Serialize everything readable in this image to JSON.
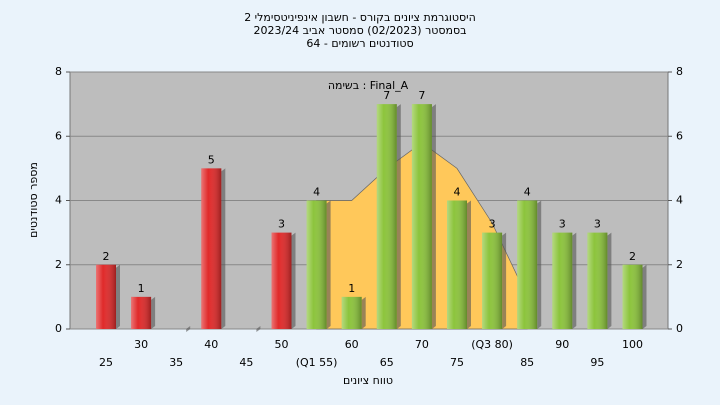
{
  "chart_data": {
    "type": "bar",
    "title": [
      "היסטוגרמת ציונים בקורס - חשבון אינפיניטסימלי 2",
      "בסמסטר  (02/2023)  סמסטר אביב 2023/24",
      "סטודנטים רשומים - 64"
    ],
    "annotation": "בשימה : Final_A",
    "x_label": "טווח ציונים",
    "y_label": "מספר סטודנטים",
    "categories": [
      "25",
      "30",
      "35",
      "40",
      "45",
      "50",
      "(Q1 55)",
      "60",
      "65",
      "70",
      "75",
      "(Q3 80)",
      "85",
      "90",
      "95",
      "100"
    ],
    "values": [
      2,
      1,
      0,
      5,
      0,
      3,
      4,
      1,
      7,
      7,
      4,
      3,
      4,
      3,
      3,
      2
    ],
    "colors": [
      "#e02a2a",
      "#e02a2a",
      "#e02a2a",
      "#e02a2a",
      "#e02a2a",
      "#e02a2a",
      "#8cc43c",
      "#8cc43c",
      "#8cc43c",
      "#8cc43c",
      "#8cc43c",
      "#8cc43c",
      "#8cc43c",
      "#8cc43c",
      "#8cc43c",
      "#8cc43c"
    ],
    "curve": {
      "color": "#ffc85a",
      "values": [
        null,
        null,
        null,
        null,
        null,
        null,
        4,
        4,
        5,
        5.8,
        5,
        3.3,
        1,
        null,
        null,
        null
      ]
    },
    "ylim": [
      0,
      8
    ],
    "yticks": [
      0,
      2,
      4,
      6,
      8
    ],
    "y2lim": [
      0,
      8
    ],
    "y2ticks": [
      0,
      2,
      4,
      6,
      8
    ],
    "grid": true
  }
}
